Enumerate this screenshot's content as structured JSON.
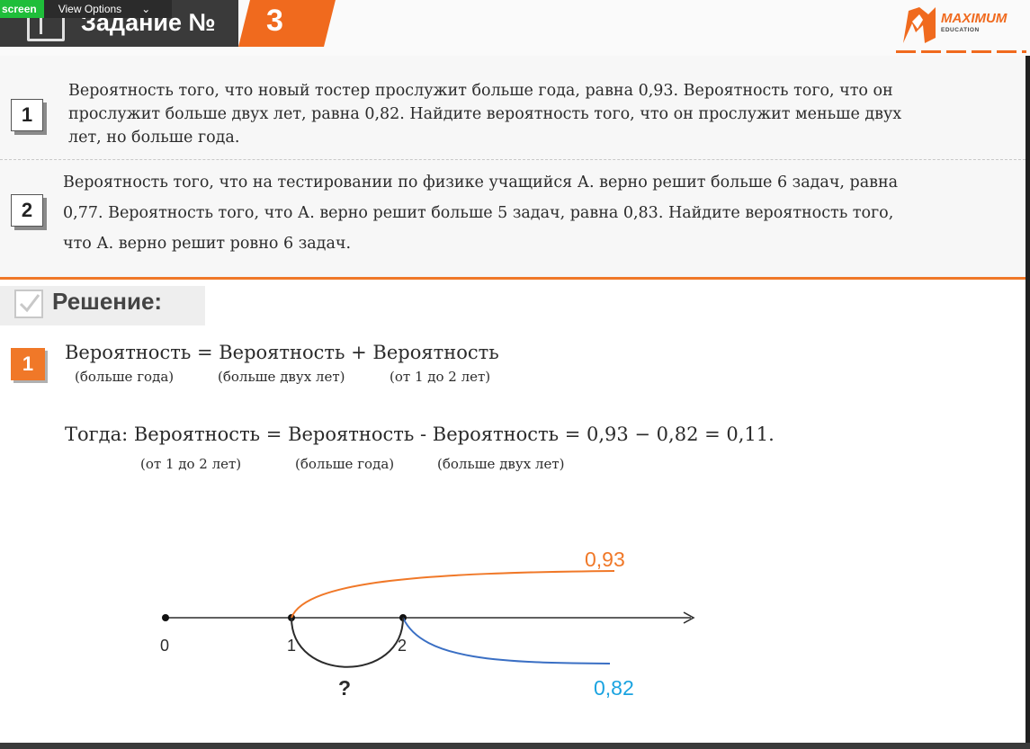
{
  "zoom_bar": {
    "screen_label": "screen",
    "view_options_label": "View Options",
    "view_options_icon": "chevron-down-icon"
  },
  "header": {
    "title": "Задание №",
    "number": "3",
    "logo_text": "MAXIMUM",
    "logo_sub": "EDUCATION",
    "accent": "#f06a1e"
  },
  "problems": [
    {
      "number": "1",
      "lines": [
        "Вероятность того, что новый тостер прослужит больше года, равна 0,93. Вероятность того, что он",
        "прослужит больше двух лет, равна 0,82. Найдите вероятность того, что он прослужит меньше двух",
        "лет, но больше года."
      ]
    },
    {
      "number": "2",
      "lines": [
        "Вероятность того, что на тестировании по физике учащийся А. верно решит больше 6 задач, равна",
        "0,77. Вероятность того, что А. верно решит больше 5 задач, равна 0,83. Найдите вероятность того,",
        "что А. верно решит ровно 6 задач."
      ]
    }
  ],
  "solution": {
    "title": "Решение:",
    "number": "1",
    "formula1": "Вероятность = Вероятность + Вероятность",
    "formula1_sub": [
      "(больше года)",
      "(больше двух лет)",
      "(от 1 до 2 лет)"
    ],
    "formula2": "Тогда: Вероятность = Вероятность - Вероятность =  0,93 − 0,82  =  0,11.",
    "formula2_sub": [
      "(от 1 до 2 лет)",
      "(больше года)",
      "(больше двух лет)"
    ]
  },
  "diagram": {
    "axis_labels": [
      "0",
      "1",
      "2"
    ],
    "upper_value": "0,93",
    "lower_value": "0,82",
    "question": "?",
    "upper_color": "#f07828",
    "lower_color": "#1aa3e0",
    "lower_curve_color": "#3a6fc4"
  }
}
